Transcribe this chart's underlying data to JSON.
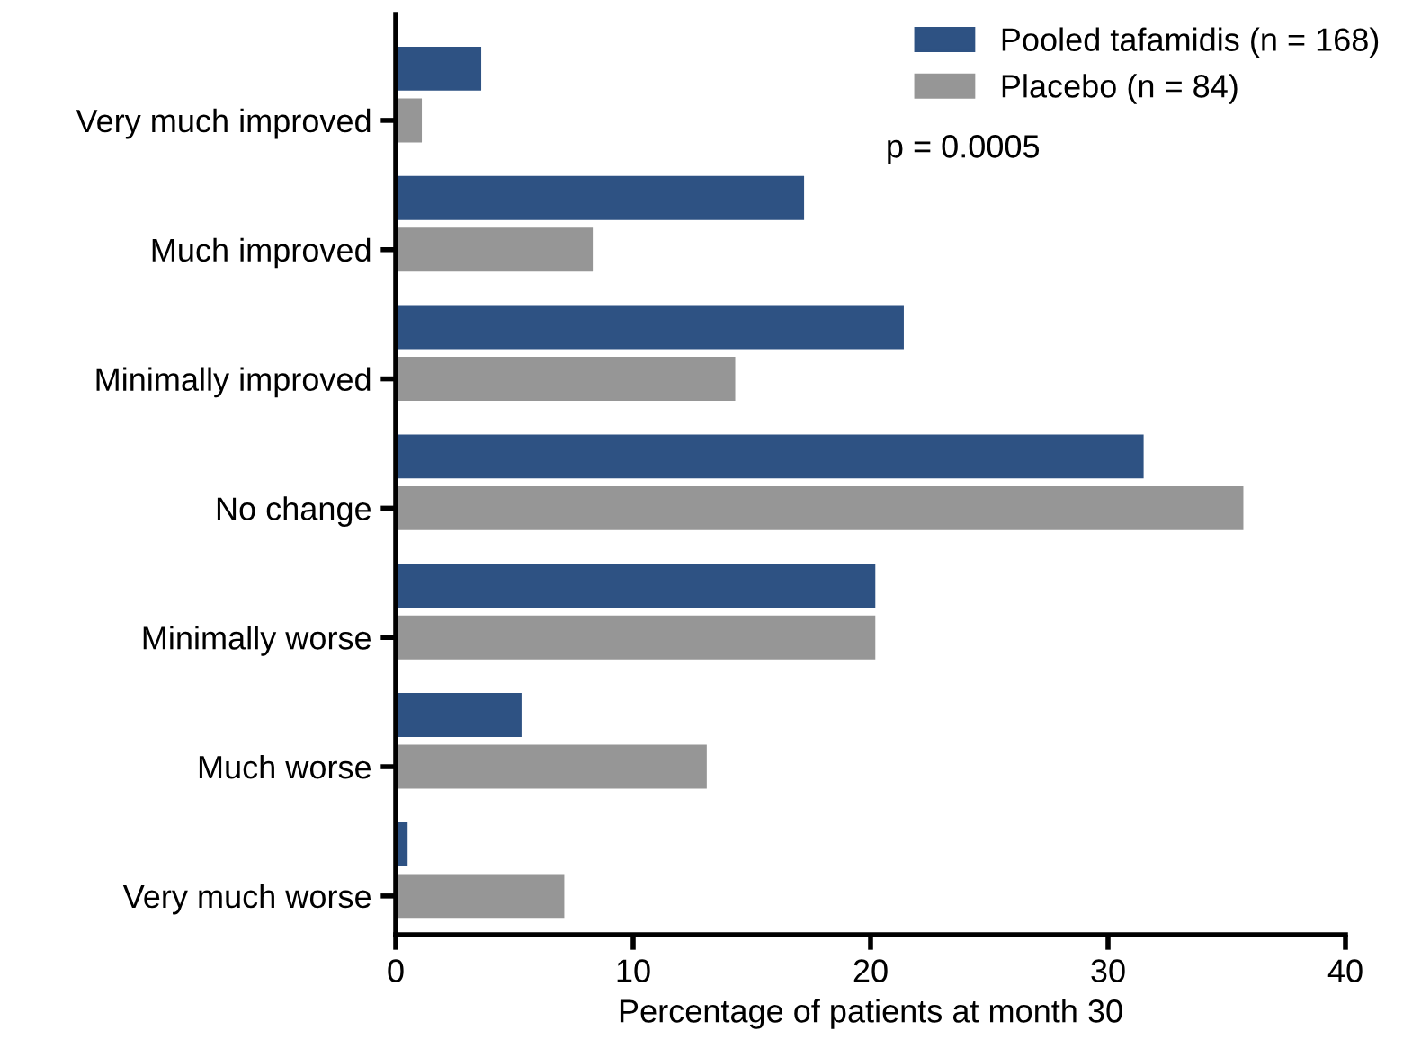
{
  "chart_data": {
    "type": "bar",
    "orientation": "horizontal",
    "xlabel": "Percentage of patients at month 30",
    "categories": [
      "Very much improved",
      "Much improved",
      "Minimally improved",
      "No change",
      "Minimally worse",
      "Much worse",
      "Very much worse"
    ],
    "series": [
      {
        "name": "Pooled tafamidis (n = 168)",
        "color": "#2e5283",
        "values": [
          3.6,
          17.2,
          21.4,
          31.5,
          20.2,
          5.3,
          0.5
        ]
      },
      {
        "name": "Placebo (n = 84)",
        "color": "#969696",
        "values": [
          1.1,
          8.3,
          14.3,
          35.7,
          20.2,
          13.1,
          7.1
        ]
      }
    ],
    "xlim": [
      0,
      40
    ],
    "xticks": [
      0,
      10,
      20,
      30,
      40
    ],
    "grid": false,
    "legend": "top right",
    "annotations": [
      "p = 0.0005"
    ]
  }
}
